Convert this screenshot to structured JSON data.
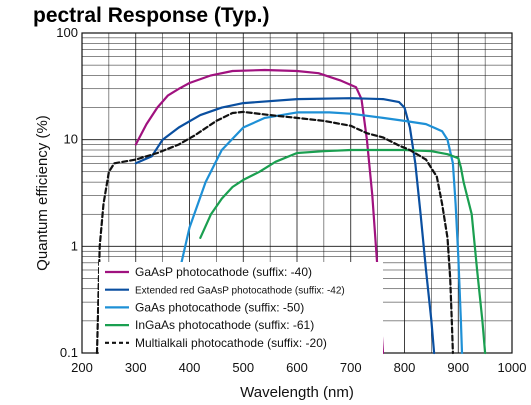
{
  "heading": "pectral Response (Typ.)",
  "chart_data": {
    "type": "line",
    "title": "",
    "xlabel": "Wavelength (nm)",
    "ylabel": "Quantum efficiency (%)",
    "xlim": [
      200,
      1000
    ],
    "ylim": [
      0.1,
      100
    ],
    "yscale": "log",
    "x_ticks": [
      200,
      300,
      400,
      500,
      600,
      700,
      800,
      900,
      1000
    ],
    "x_tick_labels": [
      "200",
      "300",
      "400",
      "500",
      "600",
      "700",
      "800",
      "900",
      "1000"
    ],
    "y_ticks": [
      0.1,
      1,
      10,
      100
    ],
    "y_tick_labels": [
      "0.1",
      "1",
      "10",
      "100"
    ],
    "grid": true,
    "legend_position": "bottom-left",
    "series": [
      {
        "name": "GaAsP photocathode (suffix: -40)",
        "color": "#a0127f",
        "dash": "solid",
        "points": [
          [
            300,
            9
          ],
          [
            320,
            14
          ],
          [
            340,
            20
          ],
          [
            360,
            26
          ],
          [
            380,
            30
          ],
          [
            400,
            34
          ],
          [
            440,
            40
          ],
          [
            480,
            44
          ],
          [
            540,
            45
          ],
          [
            600,
            44
          ],
          [
            640,
            42
          ],
          [
            680,
            36
          ],
          [
            710,
            31
          ],
          [
            720,
            24
          ],
          [
            730,
            10
          ],
          [
            740,
            3
          ],
          [
            750,
            0.6
          ],
          [
            760,
            0.1
          ]
        ]
      },
      {
        "name": "Extended red GaAsP photocathode (suffix: -42)",
        "color": "#0a4fa0",
        "dash": "solid",
        "points": [
          [
            300,
            6
          ],
          [
            330,
            7
          ],
          [
            350,
            10
          ],
          [
            380,
            13
          ],
          [
            420,
            17
          ],
          [
            460,
            20
          ],
          [
            500,
            22
          ],
          [
            600,
            24
          ],
          [
            700,
            24.5
          ],
          [
            760,
            24
          ],
          [
            790,
            22.5
          ],
          [
            800,
            20
          ],
          [
            810,
            13
          ],
          [
            820,
            6
          ],
          [
            830,
            2
          ],
          [
            840,
            0.6
          ],
          [
            850,
            0.2
          ],
          [
            855,
            0.1
          ]
        ]
      },
      {
        "name": "GaAs photocathode (suffix: -50)",
        "color": "#1e90d6",
        "dash": "solid",
        "points": [
          [
            380,
            0.15
          ],
          [
            385,
            0.7
          ],
          [
            400,
            1.5
          ],
          [
            430,
            4
          ],
          [
            460,
            8
          ],
          [
            500,
            13
          ],
          [
            540,
            16
          ],
          [
            600,
            18
          ],
          [
            660,
            18
          ],
          [
            700,
            17.5
          ],
          [
            760,
            16
          ],
          [
            800,
            15
          ],
          [
            840,
            14
          ],
          [
            870,
            12
          ],
          [
            880,
            10
          ],
          [
            890,
            6
          ],
          [
            895,
            2.5
          ],
          [
            900,
            0.8
          ],
          [
            905,
            0.2
          ],
          [
            907,
            0.1
          ]
        ]
      },
      {
        "name": "InGaAs photocathode (suffix: -61)",
        "color": "#1a9f50",
        "dash": "solid",
        "points": [
          [
            420,
            1.2
          ],
          [
            440,
            2
          ],
          [
            460,
            2.8
          ],
          [
            480,
            3.6
          ],
          [
            500,
            4.2
          ],
          [
            530,
            5
          ],
          [
            560,
            6.2
          ],
          [
            600,
            7.5
          ],
          [
            650,
            7.8
          ],
          [
            700,
            8
          ],
          [
            800,
            8
          ],
          [
            850,
            7.8
          ],
          [
            880,
            7.3
          ],
          [
            900,
            6.7
          ],
          [
            905,
            5.5
          ],
          [
            910,
            4
          ],
          [
            925,
            2
          ],
          [
            935,
            0.6
          ],
          [
            945,
            0.2
          ],
          [
            950,
            0.1
          ]
        ]
      },
      {
        "name": "Multialkali photocathode (suffix: -20)",
        "color": "#111111",
        "dash": "dashed",
        "points": [
          [
            228,
            0.1
          ],
          [
            233,
            1
          ],
          [
            240,
            2.5
          ],
          [
            250,
            5
          ],
          [
            260,
            6
          ],
          [
            300,
            6.5
          ],
          [
            340,
            7.5
          ],
          [
            380,
            9
          ],
          [
            410,
            11
          ],
          [
            450,
            15
          ],
          [
            480,
            17.8
          ],
          [
            500,
            18.2
          ],
          [
            550,
            17
          ],
          [
            600,
            16
          ],
          [
            650,
            15
          ],
          [
            700,
            13.5
          ],
          [
            730,
            11.5
          ],
          [
            760,
            10.5
          ],
          [
            790,
            8.8
          ],
          [
            810,
            8
          ],
          [
            840,
            6.5
          ],
          [
            860,
            4.5
          ],
          [
            870,
            2.5
          ],
          [
            880,
            1.2
          ],
          [
            885,
            0.5
          ],
          [
            888,
            0.2
          ],
          [
            890,
            0.1
          ]
        ]
      }
    ]
  }
}
